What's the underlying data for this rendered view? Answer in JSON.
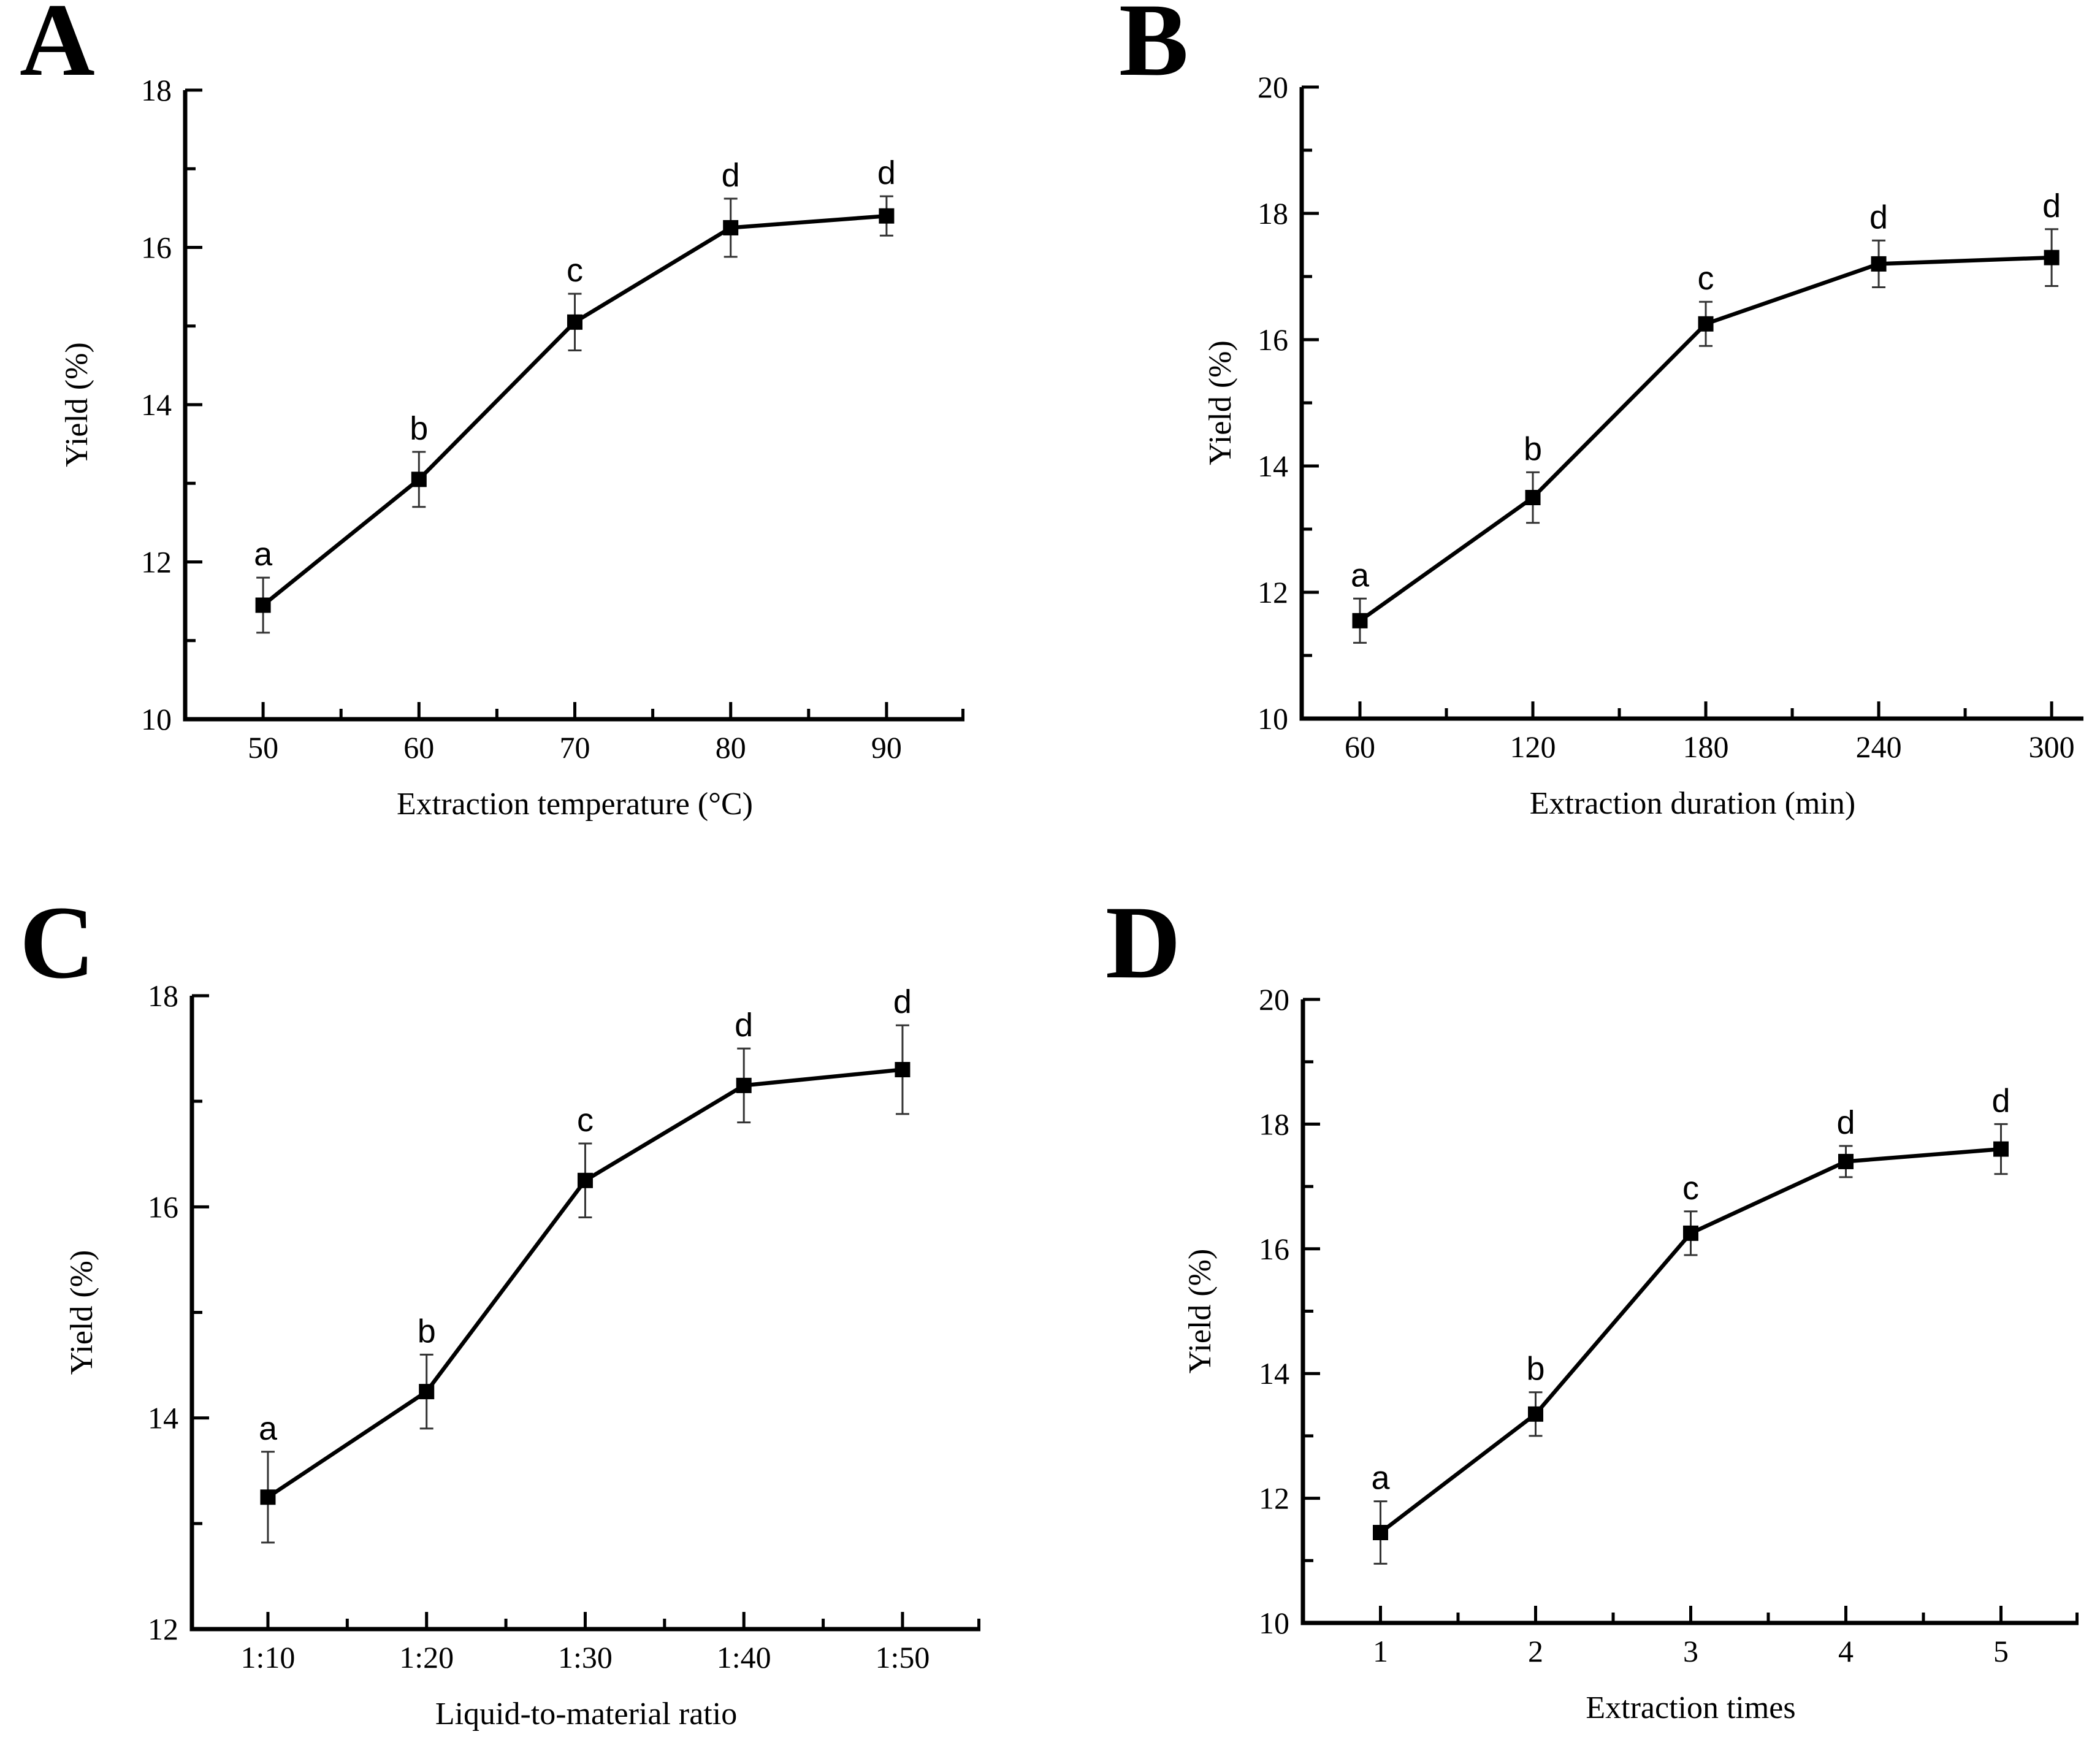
{
  "figure": {
    "background_color": "#ffffff",
    "ink_color": "#000000",
    "error_bar_color": "#333333",
    "marker": "filled-square",
    "description": "Four-panel line chart figure (A, B, C, D) of extraction yield versus process parameters, each point with error bars and significance letters"
  },
  "chart_data": [
    {
      "panel_label": "A",
      "type": "line",
      "x_categories": [
        "50",
        "60",
        "70",
        "80",
        "90"
      ],
      "values": [
        11.45,
        13.05,
        15.05,
        16.25,
        16.4
      ],
      "errors": [
        0.35,
        0.35,
        0.36,
        0.37,
        0.25
      ],
      "point_labels": [
        "a",
        "b",
        "c",
        "d",
        "d"
      ],
      "xlabel": "Extraction temperature (°C)",
      "ylabel": "Yield (%)",
      "ylim": [
        10,
        18
      ],
      "yticks": [
        10,
        12,
        14,
        16,
        18
      ],
      "grid": false,
      "legend": "none"
    },
    {
      "panel_label": "B",
      "type": "line",
      "x_categories": [
        "60",
        "120",
        "180",
        "240",
        "300"
      ],
      "values": [
        11.55,
        13.5,
        16.25,
        17.2,
        17.3
      ],
      "errors": [
        0.35,
        0.4,
        0.35,
        0.37,
        0.45
      ],
      "point_labels": [
        "a",
        "b",
        "c",
        "d",
        "d"
      ],
      "xlabel": "Extraction duration (min)",
      "ylabel": "Yield (%)",
      "ylim": [
        10,
        20
      ],
      "yticks": [
        10,
        12,
        14,
        16,
        18,
        20
      ],
      "grid": false,
      "legend": "none"
    },
    {
      "panel_label": "C",
      "type": "line",
      "x_categories": [
        "1:10",
        "1:20",
        "1:30",
        "1:40",
        "1:50"
      ],
      "values": [
        13.25,
        14.25,
        16.25,
        17.15,
        17.3
      ],
      "errors": [
        0.43,
        0.35,
        0.35,
        0.35,
        0.42
      ],
      "point_labels": [
        "a",
        "b",
        "c",
        "d",
        "d"
      ],
      "xlabel": "Liquid-to-material ratio",
      "ylabel": "Yield (%)",
      "ylim": [
        12,
        18
      ],
      "yticks": [
        12,
        14,
        16,
        18
      ],
      "grid": false,
      "legend": "none"
    },
    {
      "panel_label": "D",
      "type": "line",
      "x_categories": [
        "1",
        "2",
        "3",
        "4",
        "5"
      ],
      "values": [
        11.45,
        13.35,
        16.25,
        17.4,
        17.6
      ],
      "errors": [
        0.5,
        0.35,
        0.35,
        0.25,
        0.4
      ],
      "point_labels": [
        "a",
        "b",
        "c",
        "d",
        "d"
      ],
      "xlabel": "Extraction times",
      "ylabel": "Yield (%)",
      "ylim": [
        10,
        20
      ],
      "yticks": [
        10,
        12,
        14,
        16,
        18,
        20
      ],
      "grid": false,
      "legend": "none"
    }
  ]
}
